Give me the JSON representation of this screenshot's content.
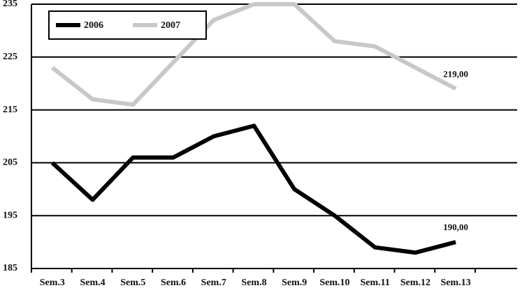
{
  "chart_data": {
    "type": "line",
    "categories": [
      "Sem.3",
      "Sem.4",
      "Sem.5",
      "Sem.6",
      "Sem.7",
      "Sem.8",
      "Sem.9",
      "Sem.10",
      "Sem.11",
      "Sem.12",
      "Sem.13"
    ],
    "series": [
      {
        "name": "2006",
        "color": "#000000",
        "values": [
          205,
          198,
          206,
          206,
          210,
          212,
          200,
          195,
          189,
          188,
          190
        ],
        "value_labels": [
          null,
          null,
          null,
          null,
          null,
          null,
          null,
          null,
          null,
          null,
          "190,00"
        ]
      },
      {
        "name": "2007",
        "color": "#c8c8c8",
        "values": [
          223,
          217,
          216,
          224,
          232,
          235,
          235,
          228,
          227,
          223,
          219
        ],
        "value_labels": [
          null,
          null,
          null,
          null,
          null,
          null,
          null,
          null,
          null,
          null,
          "219,00"
        ]
      }
    ],
    "ylim": [
      185,
      235
    ],
    "yticks": [
      185,
      195,
      205,
      215,
      225,
      235
    ],
    "grid": true,
    "legend": "top-left"
  }
}
